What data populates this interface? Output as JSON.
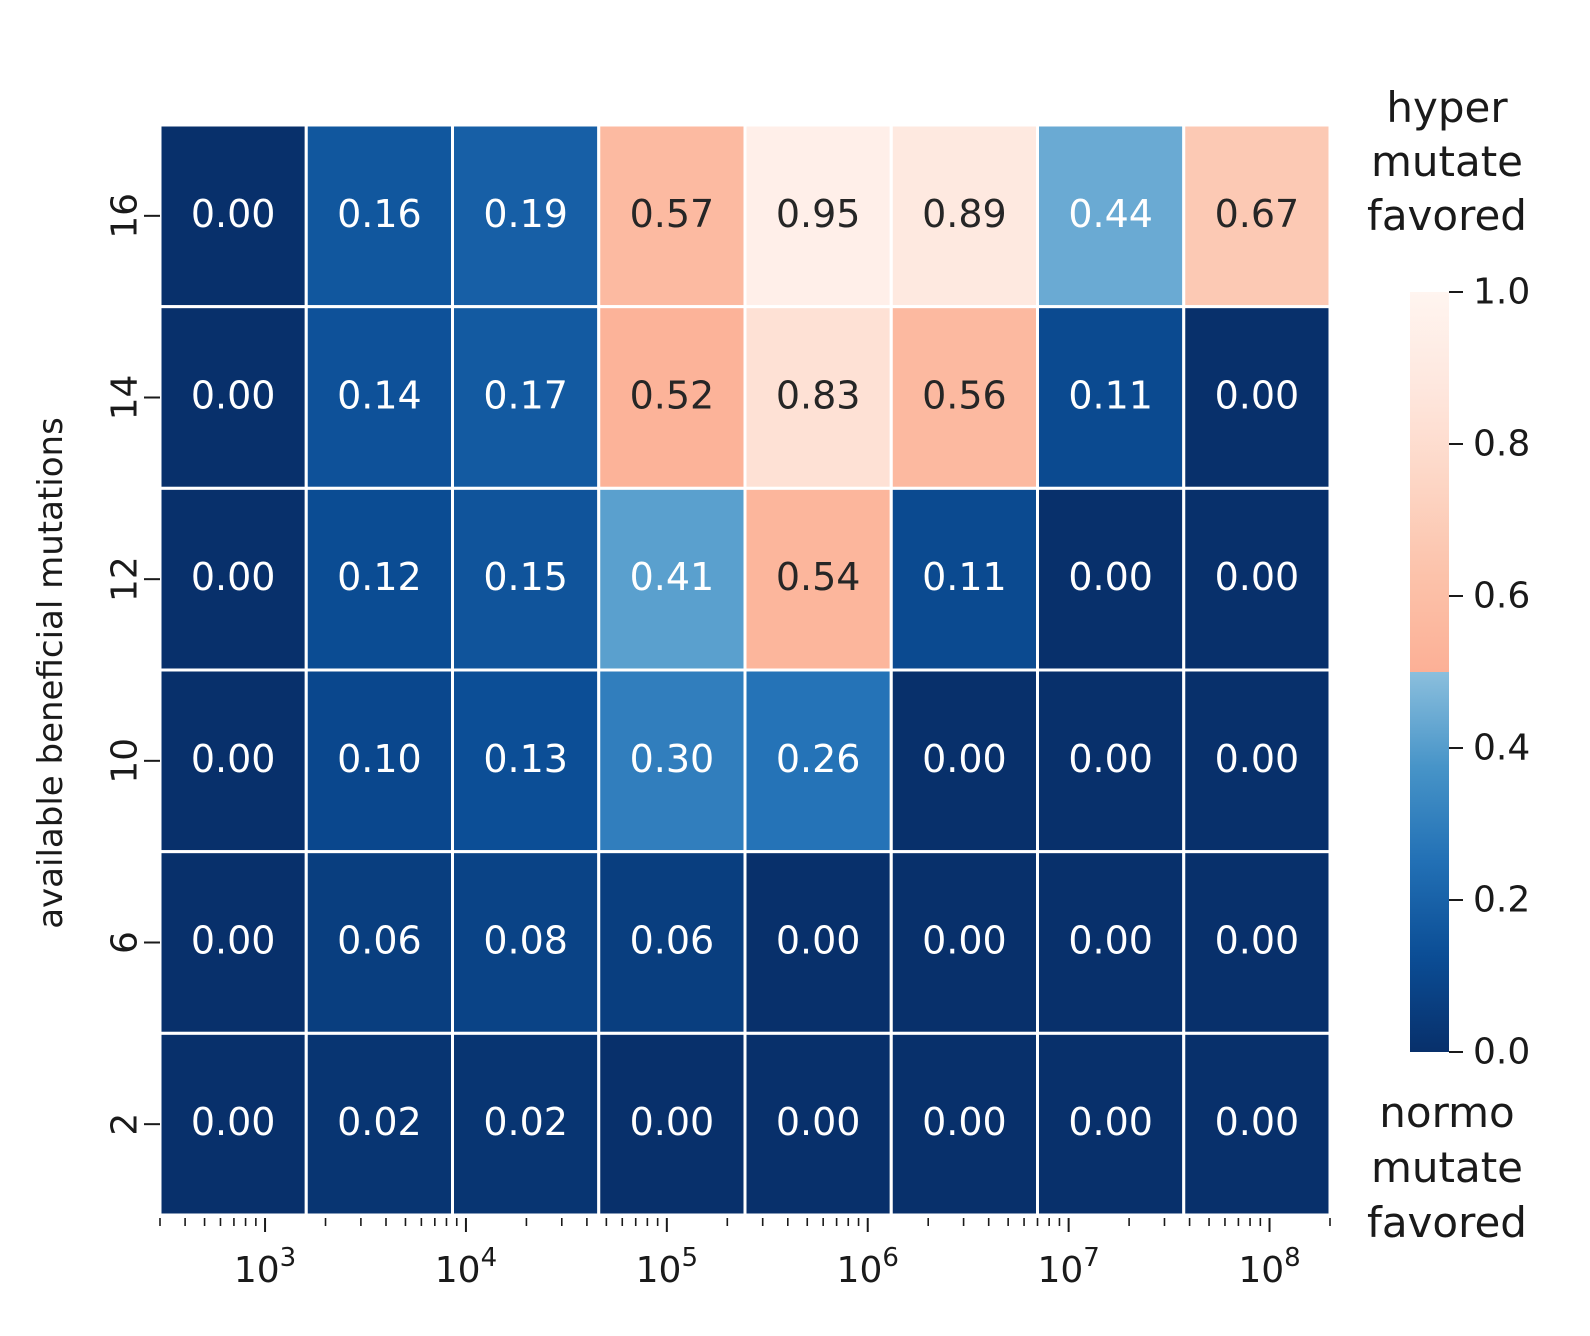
{
  "chart_data": {
    "type": "heatmap",
    "ylabel": "available beneficial mutations",
    "y_categories": [
      "16",
      "14",
      "12",
      "10",
      "6",
      "2"
    ],
    "x_axis": {
      "scale": "log",
      "range": [
        300,
        200000000
      ],
      "ticks": [
        {
          "value": 1000,
          "base": "10",
          "exp": "3"
        },
        {
          "value": 10000,
          "base": "10",
          "exp": "4"
        },
        {
          "value": 100000,
          "base": "10",
          "exp": "5"
        },
        {
          "value": 1000000,
          "base": "10",
          "exp": "6"
        },
        {
          "value": 10000000,
          "base": "10",
          "exp": "7"
        },
        {
          "value": 100000000,
          "base": "10",
          "exp": "8"
        }
      ]
    },
    "values": [
      [
        0.0,
        0.16,
        0.19,
        0.57,
        0.95,
        0.89,
        0.44,
        0.67
      ],
      [
        0.0,
        0.14,
        0.17,
        0.52,
        0.83,
        0.56,
        0.11,
        0.0
      ],
      [
        0.0,
        0.12,
        0.15,
        0.41,
        0.54,
        0.11,
        0.0,
        0.0
      ],
      [
        0.0,
        0.1,
        0.13,
        0.3,
        0.26,
        0.0,
        0.0,
        0.0
      ],
      [
        0.0,
        0.06,
        0.08,
        0.06,
        0.0,
        0.0,
        0.0,
        0.0
      ],
      [
        0.0,
        0.02,
        0.02,
        0.0,
        0.0,
        0.0,
        0.0,
        0.0
      ]
    ],
    "value_format": "2 decimals",
    "colorbar": {
      "range": [
        0,
        1
      ],
      "ticks": [
        "0.0",
        "0.2",
        "0.4",
        "0.6",
        "0.8",
        "1.0"
      ],
      "top_label": [
        "hyper",
        "mutate",
        "favored"
      ],
      "bottom_label": [
        "normo",
        "mutate",
        "favored"
      ],
      "split": 0.5,
      "colormap_low": "Blues_r (0 to 0.5)",
      "colormap_high": "Reds (0.5 to 1.0)"
    },
    "grid": false,
    "legend": "colorbar right"
  }
}
